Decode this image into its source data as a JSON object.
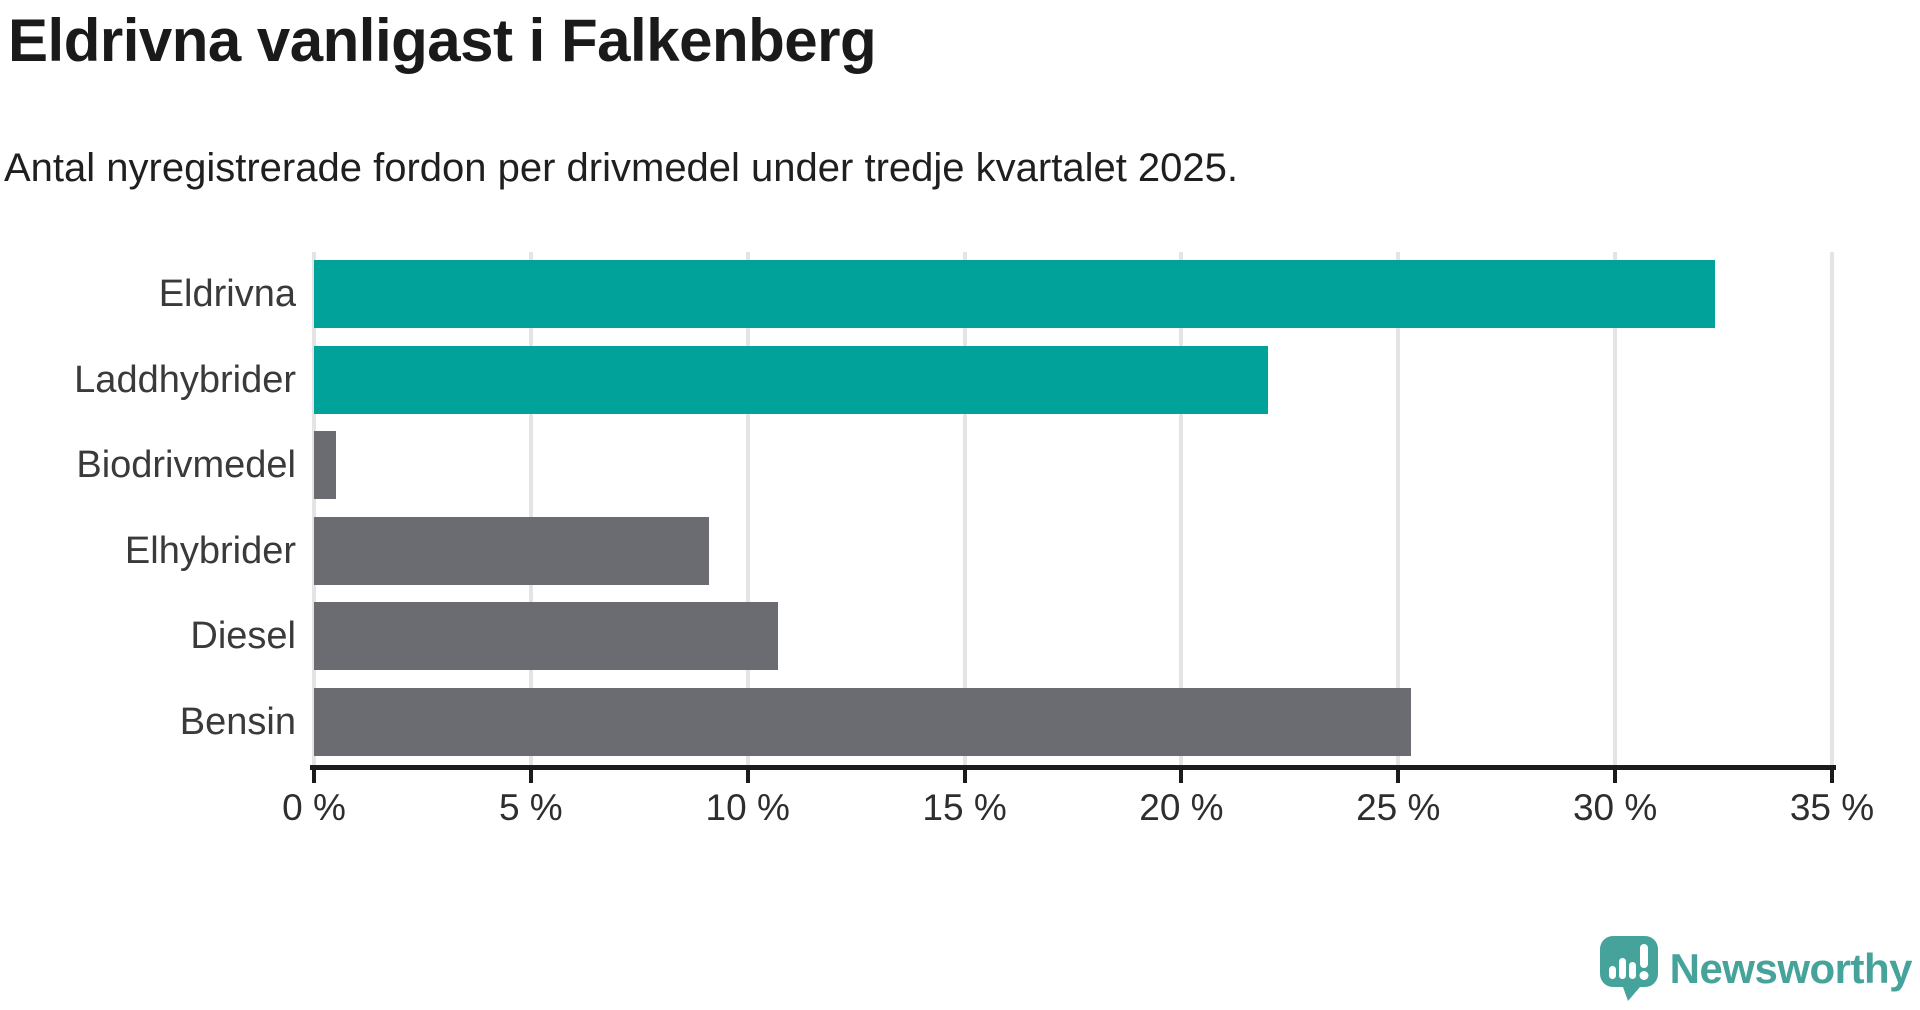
{
  "header": {
    "title": "Eldrivna vanligast i Falkenberg",
    "subtitle": "Antal nyregistrerade fordon per drivmedel under tredje kvartalet 2025."
  },
  "chart_data": {
    "type": "bar",
    "orientation": "horizontal",
    "title": "Eldrivna vanligast i Falkenberg",
    "xlabel": "",
    "ylabel": "",
    "unit": "%",
    "categories": [
      "Eldrivna",
      "Laddhybrider",
      "Biodrivmedel",
      "Elhybrider",
      "Diesel",
      "Bensin"
    ],
    "values": [
      32.3,
      22.0,
      0.5,
      9.1,
      10.7,
      25.3
    ],
    "bar_colors": [
      "#00a299",
      "#00a299",
      "#6b6b72",
      "#6b6b72",
      "#6b6b72",
      "#6b6b72"
    ],
    "xlim": [
      0,
      35
    ],
    "x_ticks": [
      0,
      5,
      10,
      15,
      20,
      25,
      30,
      35
    ],
    "x_tick_labels": [
      "0 %",
      "5 %",
      "10 %",
      "15 %",
      "20 %",
      "25 %",
      "30 %",
      "35 %"
    ],
    "grid": "vertical-gridlines-on",
    "legend": "none"
  },
  "colors": {
    "accent_teal": "#00a299",
    "bar_gray": "#6b6b72",
    "gridline": "#e4e4e4",
    "axis": "#1b1b1b",
    "logo_teal": "#46a39b"
  },
  "footer": {
    "brand": "Newsworthy",
    "logo_icon": "newsworthy-speech-bubble-bar-chart-icon"
  }
}
